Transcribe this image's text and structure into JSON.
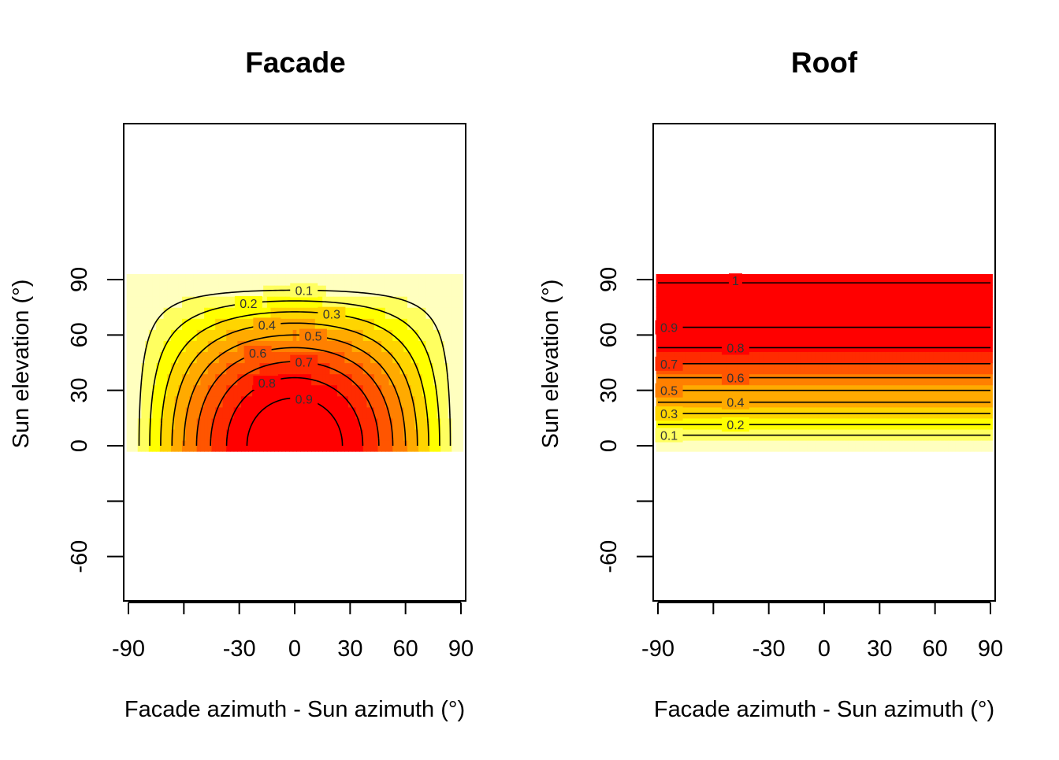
{
  "chart_data": [
    {
      "type": "heatmap",
      "title": "Facade",
      "xlabel": "Facade azimuth - Sun azimuth (°)",
      "ylabel": "Sun elevation (°)",
      "xlim": [
        -90,
        90
      ],
      "ylim": [
        -90,
        120
      ],
      "x_ticks": [
        -90,
        -60,
        -30,
        0,
        30,
        60,
        90
      ],
      "x_tick_labels": [
        "-90",
        "",
        "-30",
        "0",
        "30",
        "60",
        "90"
      ],
      "y_ticks": [
        -60,
        -30,
        0,
        30,
        60,
        90
      ],
      "y_tick_labels": [
        "-60",
        "",
        "0",
        "30",
        "60",
        "90"
      ],
      "field_x_range": [
        -90,
        90
      ],
      "field_y_range": [
        0,
        90
      ],
      "field": "cos(azimuth difference) * cos(sun elevation)",
      "contour_levels": [
        0.1,
        0.2,
        0.3,
        0.4,
        0.5,
        0.6,
        0.7,
        0.8,
        0.9
      ],
      "contour_labels": [
        "0.1",
        "0.2",
        "0.3",
        "0.4",
        "0.5",
        "0.6",
        "0.7",
        "0.8",
        "0.9"
      ],
      "colors": [
        "#FFFFBF",
        "#FFFF60",
        "#FFFF00",
        "#FFD500",
        "#FFAA00",
        "#FF8000",
        "#FF5500",
        "#FF2B00",
        "#FF0000",
        "#FF0000"
      ],
      "grid": false,
      "legend": "none"
    },
    {
      "type": "heatmap",
      "title": "Roof",
      "xlabel": "Facade azimuth - Sun azimuth (°)",
      "ylabel": "Sun elevation (°)",
      "xlim": [
        -90,
        90
      ],
      "ylim": [
        -90,
        120
      ],
      "x_ticks": [
        -90,
        -60,
        -30,
        0,
        30,
        60,
        90
      ],
      "x_tick_labels": [
        "-90",
        "",
        "-30",
        "0",
        "30",
        "60",
        "90"
      ],
      "y_ticks": [
        -60,
        -30,
        0,
        30,
        60,
        90
      ],
      "y_tick_labels": [
        "-60",
        "",
        "0",
        "30",
        "60",
        "90"
      ],
      "field_x_range": [
        -90,
        90
      ],
      "field_y_range": [
        0,
        90
      ],
      "field": "sin(sun elevation)",
      "contour_levels": [
        0.1,
        0.2,
        0.3,
        0.4,
        0.5,
        0.6,
        0.7,
        0.8,
        0.9,
        1
      ],
      "contour_labels": [
        "0.1",
        "0.2",
        "0.3",
        "0.4",
        "0.5",
        "0.6",
        "0.7",
        "0.8",
        "0.9",
        "1"
      ],
      "colors": [
        "#FFFFBF",
        "#FFFF60",
        "#FFFF00",
        "#FFD500",
        "#FFAA00",
        "#FF8000",
        "#FF5500",
        "#FF2B00",
        "#FF0000",
        "#FF0000"
      ],
      "grid": false,
      "legend": "none"
    }
  ]
}
